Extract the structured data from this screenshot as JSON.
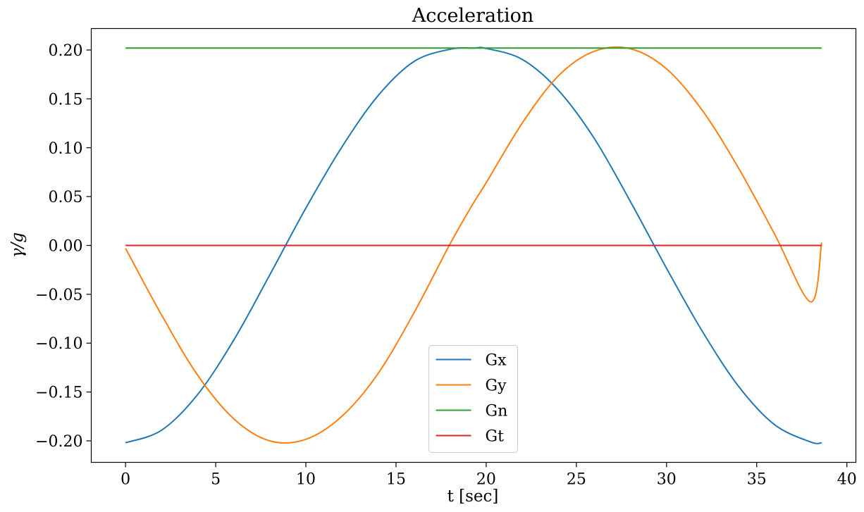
{
  "chart_data": {
    "type": "line",
    "title": "Acceleration",
    "xlabel": "t [sec]",
    "ylabel": "γ/g",
    "xlim": [
      -1.9,
      40.5
    ],
    "ylim": [
      -0.222,
      0.222
    ],
    "xticks": [
      0,
      5,
      10,
      15,
      20,
      25,
      30,
      35,
      40
    ],
    "yticks": [
      0.2,
      0.15,
      0.1,
      0.05,
      0.0,
      -0.05,
      -0.1,
      -0.15,
      -0.2
    ],
    "xtick_labels": [
      "0",
      "5",
      "10",
      "15",
      "20",
      "25",
      "30",
      "35",
      "40"
    ],
    "ytick_labels": [
      "0.20",
      "0.15",
      "0.10",
      "0.05",
      "0.00",
      "−0.05",
      "−0.10",
      "−0.15",
      "−0.20"
    ],
    "grid": false,
    "legend": {
      "placement": "lower-center"
    },
    "x": [
      0,
      2,
      4,
      6,
      8,
      10,
      12,
      14,
      16,
      18,
      19.3,
      20,
      22,
      24,
      26,
      28,
      30,
      32,
      34,
      36,
      38,
      38.6
    ],
    "series": [
      {
        "name": "Gx",
        "color": "#1f77b4",
        "values": [
          -0.202,
          -0.1891,
          -0.1525,
          -0.0969,
          -0.0301,
          0.0382,
          0.1008,
          0.1532,
          0.1883,
          0.2008,
          0.202,
          0.2016,
          0.1904,
          0.1589,
          0.1093,
          0.0448,
          -0.0234,
          -0.0884,
          -0.1443,
          -0.1836,
          -0.2012,
          -0.202
        ]
      },
      {
        "name": "Gy",
        "color": "#ff7f0e",
        "values": [
          -0.003,
          -0.0712,
          -0.1328,
          -0.1774,
          -0.2,
          -0.1984,
          -0.1748,
          -0.1312,
          -0.0688,
          0.0017,
          0.0436,
          0.0642,
          0.1253,
          0.1735,
          0.1988,
          0.2013,
          0.1807,
          0.1378,
          0.0789,
          0.0113,
          -0.0578,
          0.003
        ]
      },
      {
        "name": "Gn",
        "color": "#2ca02c",
        "values": [
          0.202,
          0.202,
          0.202,
          0.202,
          0.202,
          0.202,
          0.202,
          0.202,
          0.202,
          0.202,
          0.202,
          0.202,
          0.202,
          0.202,
          0.202,
          0.202,
          0.202,
          0.202,
          0.202,
          0.202,
          0.202,
          0.202
        ]
      },
      {
        "name": "Gt",
        "color": "#d62728",
        "values": [
          0,
          0,
          0,
          0,
          0,
          0,
          0,
          0,
          0,
          0,
          0,
          0,
          0,
          0,
          0,
          0,
          0,
          0,
          0,
          0,
          0,
          0
        ]
      }
    ]
  }
}
